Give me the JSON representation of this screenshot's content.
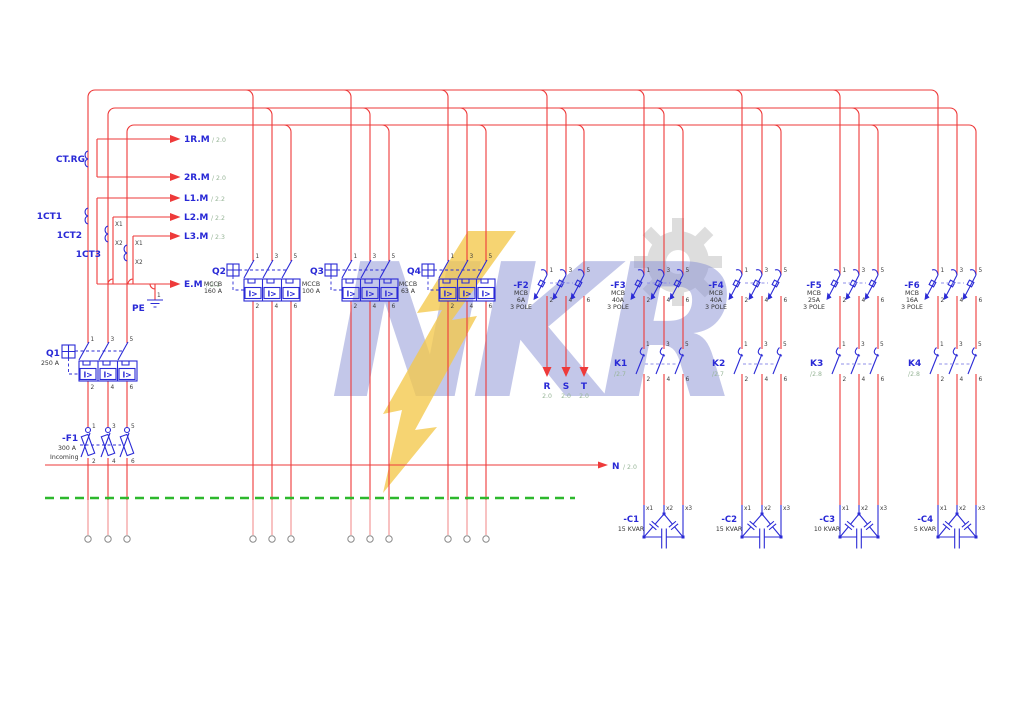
{
  "watermark": {
    "text": "NKR"
  },
  "meters": [
    {
      "label": "1R.M",
      "ref": "/ 2.0"
    },
    {
      "label": "2R.M",
      "ref": "/ 2.0"
    },
    {
      "label": "L1.M",
      "ref": "/ 2.2"
    },
    {
      "label": "L2.M",
      "ref": "/ 2.2"
    },
    {
      "label": "L3.M",
      "ref": "/ 2.3"
    },
    {
      "label": "E.M",
      "ref": "/ 2.1"
    }
  ],
  "cts": [
    {
      "label": "CT.RG"
    },
    {
      "label": "1CT1"
    },
    {
      "label": "1CT2",
      "terminals": [
        "X1",
        "X2"
      ]
    },
    {
      "label": "1CT3",
      "terminals": [
        "X1",
        "X2"
      ]
    }
  ],
  "pe": {
    "label": "PE",
    "terminal": "1"
  },
  "pole_terminals": {
    "top": [
      "1",
      "3",
      "5"
    ],
    "bottom": [
      "2",
      "4",
      "6"
    ]
  },
  "trip_label": "I>",
  "main_breaker": {
    "label": "Q1",
    "rating": "250 A"
  },
  "incoming": {
    "label": "-F1",
    "rating": "300 A",
    "note": "Incoming"
  },
  "feeders": [
    {
      "label": "Q2",
      "type": "MCCB",
      "rating": "160 A"
    },
    {
      "label": "Q3",
      "type": "MCCB",
      "rating": "100 A"
    },
    {
      "label": "Q4",
      "type": "MCCB",
      "rating": "63 A"
    }
  ],
  "mcbs": [
    {
      "label": "-F2",
      "type": "MCB",
      "rating": "6A",
      "poles": "3 POLE"
    },
    {
      "label": "-F3",
      "type": "MCB",
      "rating": "40A",
      "poles": "3 POLE"
    },
    {
      "label": "-F4",
      "type": "MCB",
      "rating": "40A",
      "poles": "3 POLE"
    },
    {
      "label": "-F5",
      "type": "MCB",
      "rating": "25A",
      "poles": "3 POLE"
    },
    {
      "label": "-F6",
      "type": "MCB",
      "rating": "16A",
      "poles": "3 POLE"
    }
  ],
  "contactors": [
    {
      "label": "K1",
      "ref": "/2.7"
    },
    {
      "label": "K2",
      "ref": "/2.7"
    },
    {
      "label": "K3",
      "ref": "/2.8"
    },
    {
      "label": "K4",
      "ref": "/2.8"
    }
  ],
  "capacitors": [
    {
      "label": "-C1",
      "rating": "15 KVAR",
      "terminals": [
        "x1",
        "x2",
        "x3"
      ]
    },
    {
      "label": "-C2",
      "rating": "15 KVAR",
      "terminals": [
        "x1",
        "x2",
        "x3"
      ]
    },
    {
      "label": "-C3",
      "rating": "10 KVAR",
      "terminals": [
        "x1",
        "x2",
        "x3"
      ]
    },
    {
      "label": "-C4",
      "rating": "5 KVAR",
      "terminals": [
        "x1",
        "x2",
        "x3"
      ]
    }
  ],
  "phase_markers": [
    {
      "label": "R",
      "ref": "2.0"
    },
    {
      "label": "S",
      "ref": "2.0"
    },
    {
      "label": "T",
      "ref": "2.0"
    }
  ],
  "neutral": {
    "label": "N",
    "ref": "/ 2.0"
  }
}
